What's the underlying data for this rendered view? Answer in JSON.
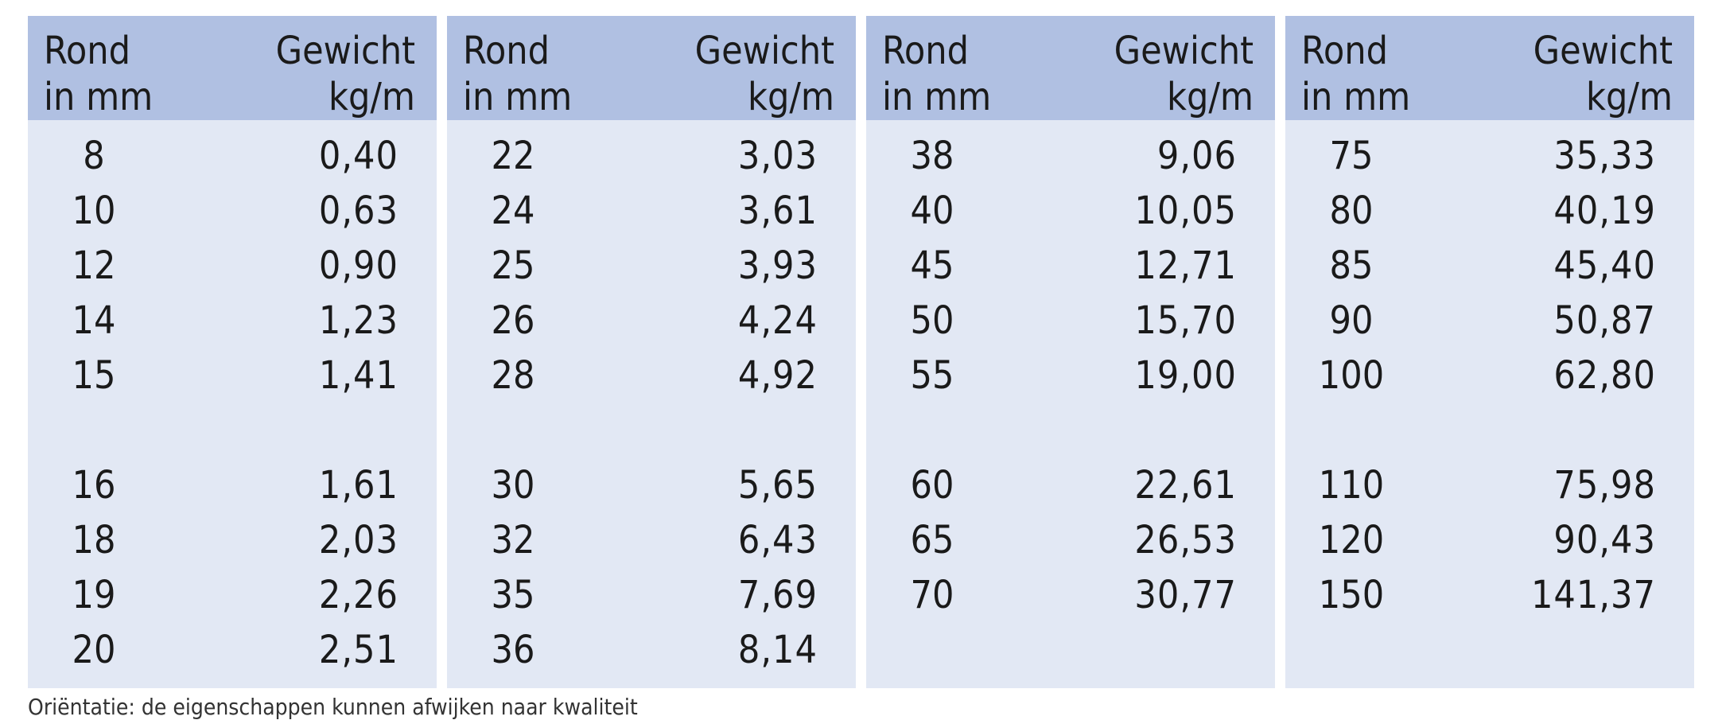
{
  "header": {
    "diameter_line1": "Rond",
    "diameter_line2": "in mm",
    "weight_line1": "Gewicht",
    "weight_line2": "kg/m"
  },
  "blocks": [
    {
      "group1": [
        [
          "8",
          "0,40"
        ],
        [
          "10",
          "0,63"
        ],
        [
          "12",
          "0,90"
        ],
        [
          "14",
          "1,23"
        ],
        [
          "15",
          "1,41"
        ]
      ],
      "group2": [
        [
          "16",
          "1,61"
        ],
        [
          "18",
          "2,03"
        ],
        [
          "19",
          "2,26"
        ],
        [
          "20",
          "2,51"
        ]
      ]
    },
    {
      "group1": [
        [
          "22",
          "3,03"
        ],
        [
          "24",
          "3,61"
        ],
        [
          "25",
          "3,93"
        ],
        [
          "26",
          "4,24"
        ],
        [
          "28",
          "4,92"
        ]
      ],
      "group2": [
        [
          "30",
          "5,65"
        ],
        [
          "32",
          "6,43"
        ],
        [
          "35",
          "7,69"
        ],
        [
          "36",
          "8,14"
        ]
      ]
    },
    {
      "group1": [
        [
          "38",
          "9,06"
        ],
        [
          "40",
          "10,05"
        ],
        [
          "45",
          "12,71"
        ],
        [
          "50",
          "15,70"
        ],
        [
          "55",
          "19,00"
        ]
      ],
      "group2": [
        [
          "60",
          "22,61"
        ],
        [
          "65",
          "26,53"
        ],
        [
          "70",
          "30,77"
        ]
      ]
    },
    {
      "group1": [
        [
          "75",
          "35,33"
        ],
        [
          "80",
          "40,19"
        ],
        [
          "85",
          "45,40"
        ],
        [
          "90",
          "50,87"
        ],
        [
          "100",
          "62,80"
        ]
      ],
      "group2": [
        [
          "110",
          "75,98"
        ],
        [
          "120",
          "90,43"
        ],
        [
          "150",
          "141,37"
        ]
      ]
    }
  ],
  "footnote": "Oriëntatie: de eigenschappen kunnen afwijken naar kwaliteit"
}
